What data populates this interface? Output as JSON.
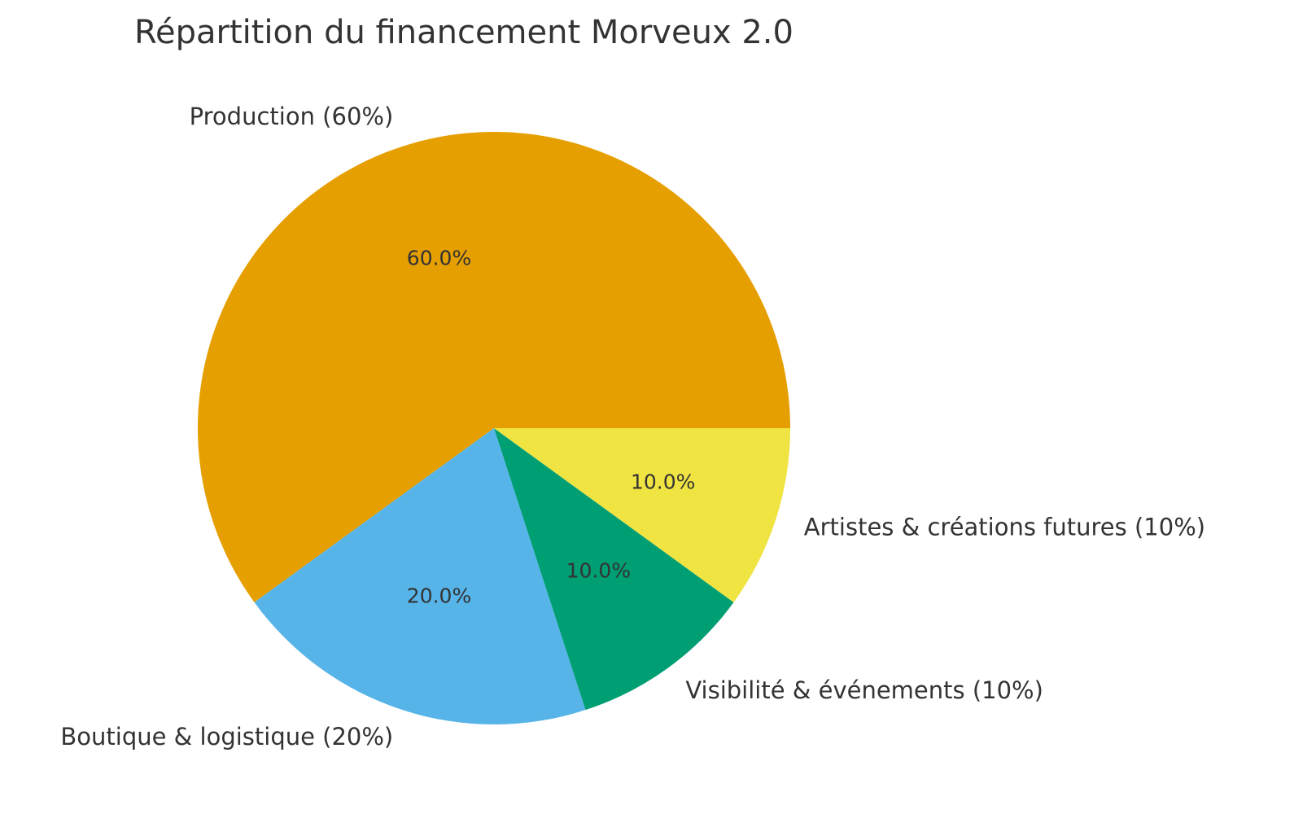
{
  "chart_data": {
    "type": "pie",
    "title": "Répartition du financement Morveux 2.0",
    "categories": [
      "Production (60%)",
      "Boutique & logistique (20%)",
      "Visibilité & événements (10%)",
      "Artistes & créations futures (10%)"
    ],
    "values": [
      60,
      20,
      10,
      10
    ],
    "value_labels": [
      "60.0%",
      "20.0%",
      "10.0%",
      "10.0%"
    ],
    "colors": [
      "#E69F00",
      "#56B4E9",
      "#009E73",
      "#F0E442"
    ]
  }
}
